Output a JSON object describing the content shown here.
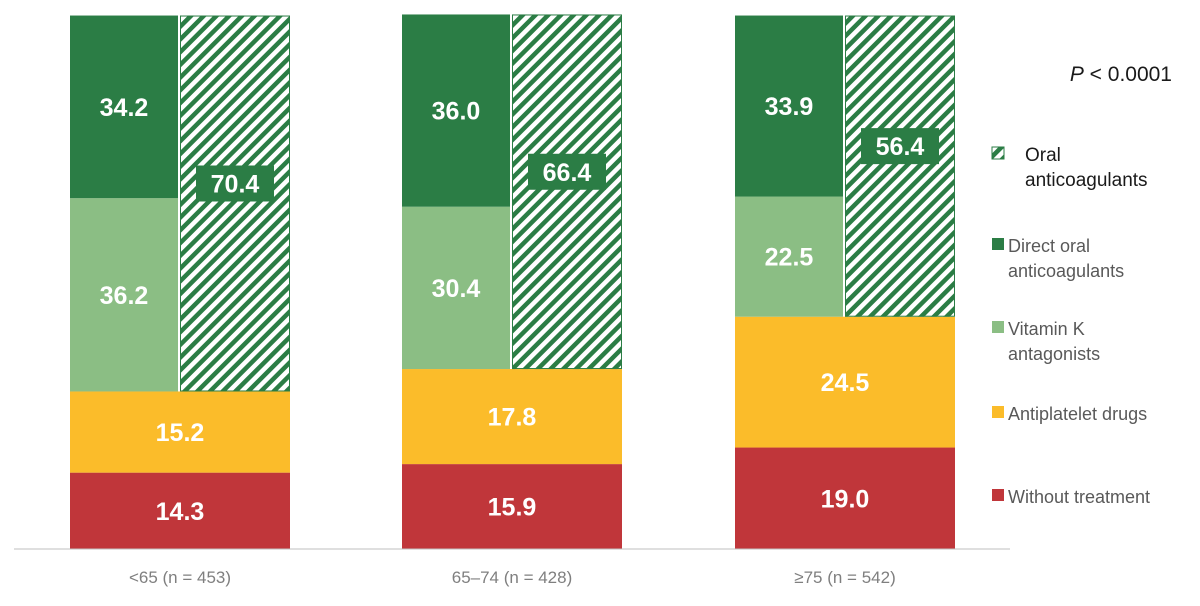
{
  "chart_data": {
    "type": "bar",
    "stacked": true,
    "categories": [
      "<65 (n = 453)",
      "65–74 (n = 428)",
      "≥75 (n = 542)"
    ],
    "series": [
      {
        "name": "Without treatment",
        "key": "without_treatment",
        "color": "#c0363a",
        "values": [
          14.3,
          15.9,
          19.0
        ],
        "labels": [
          "14.3",
          "15.9",
          "19.0"
        ]
      },
      {
        "name": "Antiplatelet drugs",
        "key": "antiplatelet",
        "color": "#fbbc2a",
        "values": [
          15.2,
          17.8,
          24.5
        ],
        "labels": [
          "15.2",
          "17.8",
          "24.5"
        ]
      },
      {
        "name": "Vitamin K antagonists",
        "key": "vka",
        "color": "#8bbe84",
        "values": [
          36.2,
          30.4,
          22.5
        ],
        "labels": [
          "36.2",
          "30.4",
          "22.5"
        ]
      },
      {
        "name": "Direct oral anticoagulants",
        "key": "doac",
        "color": "#2b7d45",
        "values": [
          34.2,
          36.0,
          33.9
        ],
        "labels": [
          "34.2",
          "36.0",
          "33.9"
        ]
      }
    ],
    "overlay": {
      "name": "Oral anticoagulants",
      "key": "oac",
      "color": "#2b7d45",
      "pattern": "diagonal-hatch",
      "values": [
        70.4,
        66.4,
        56.4
      ],
      "labels": [
        "70.4",
        "66.4",
        "56.4"
      ]
    },
    "legend": [
      {
        "lines": [
          "Oral",
          "anticoagulants"
        ],
        "swatch": "hatch",
        "color": "#2b7d45"
      },
      {
        "lines": [
          "Direct oral",
          "anticoagulants"
        ],
        "swatch": "solid",
        "color": "#2b7d45"
      },
      {
        "lines": [
          "Vitamin K",
          "antagonists"
        ],
        "swatch": "solid",
        "color": "#8bbe84"
      },
      {
        "lines": [
          "Antiplatelet drugs"
        ],
        "swatch": "solid",
        "color": "#fbbc2a"
      },
      {
        "lines": [
          "Without treatment"
        ],
        "swatch": "solid",
        "color": "#c0363a"
      }
    ],
    "p_value": {
      "prefix": "P",
      "rest": " < 0.0001"
    },
    "ylim": [
      0,
      100
    ],
    "xlabel": "",
    "ylabel": "",
    "title": "",
    "grid": false,
    "legend_position": "right"
  }
}
